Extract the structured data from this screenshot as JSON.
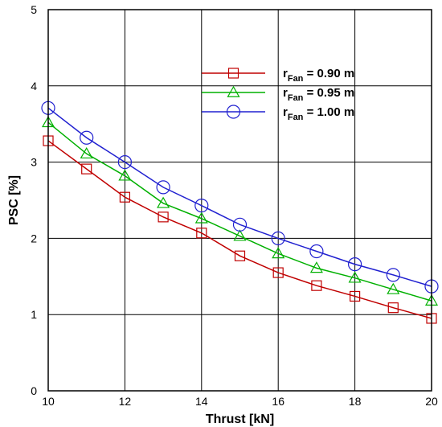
{
  "chart_data": {
    "type": "line",
    "xlabel": "Thrust [kN]",
    "ylabel": "PSC [%]",
    "xlim": [
      10,
      20
    ],
    "ylim": [
      0,
      5
    ],
    "x_ticks": [
      10,
      12,
      14,
      16,
      18,
      20
    ],
    "y_ticks": [
      0,
      1,
      2,
      3,
      4,
      5
    ],
    "grid": true,
    "legend_position": "top-right",
    "x": [
      10,
      11,
      12,
      13,
      14,
      15,
      16,
      17,
      18,
      19,
      20
    ],
    "series": [
      {
        "label_main": "r",
        "label_sub": "Fan",
        "label_value": " = 0.90 m",
        "marker": "square",
        "color": "#c00000",
        "values": [
          3.28,
          2.91,
          2.54,
          2.28,
          2.07,
          1.77,
          1.55,
          1.38,
          1.24,
          1.09,
          0.95
        ]
      },
      {
        "label_main": "r",
        "label_sub": "Fan",
        "label_value": " = 0.95 m",
        "marker": "triangle",
        "color": "#00b000",
        "values": [
          3.52,
          3.11,
          2.82,
          2.46,
          2.26,
          2.03,
          1.8,
          1.61,
          1.48,
          1.33,
          1.18
        ]
      },
      {
        "label_main": "r",
        "label_sub": "Fan",
        "label_value": " = 1.00 m",
        "marker": "circle",
        "color": "#2020d0",
        "values": [
          3.71,
          3.32,
          3.0,
          2.67,
          2.43,
          2.18,
          2.0,
          1.83,
          1.66,
          1.52,
          1.37
        ]
      }
    ]
  }
}
